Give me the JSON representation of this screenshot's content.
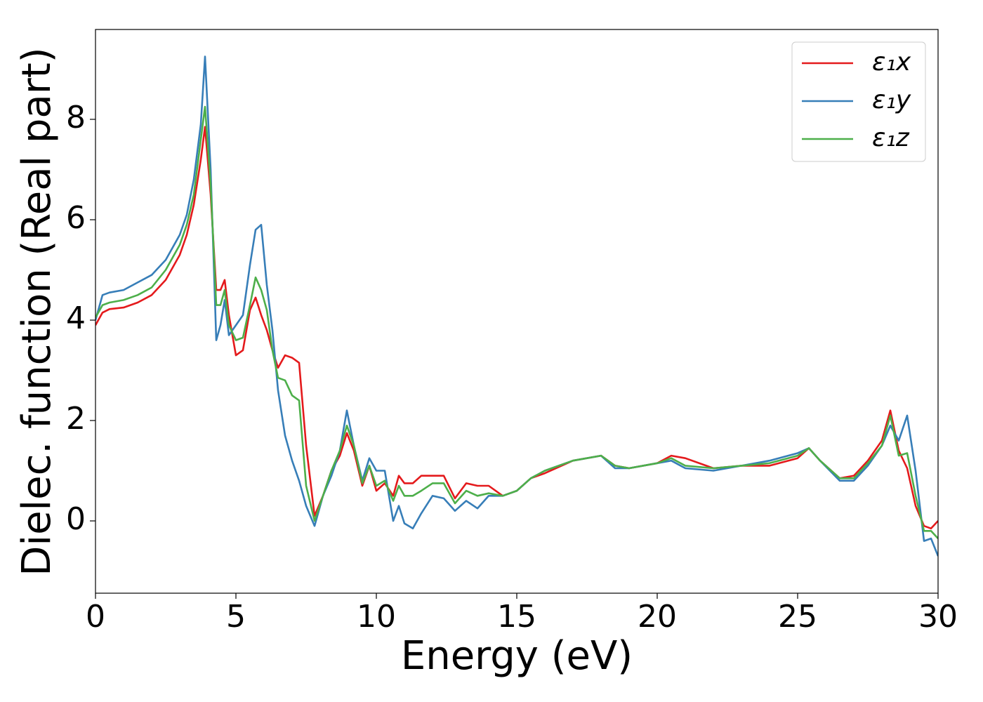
{
  "chart_data": {
    "type": "line",
    "xlabel": "Energy (eV)",
    "ylabel": "Dielec. function (Real part)",
    "xlim": [
      0,
      30
    ],
    "ylim": [
      -1.44,
      9.79
    ],
    "xticks": [
      0,
      5,
      10,
      15,
      20,
      25,
      30
    ],
    "yticks": [
      0,
      2,
      4,
      6,
      8
    ],
    "grid": false,
    "legend": "upper right",
    "x": [
      0,
      0.25,
      0.5,
      1,
      1.5,
      2,
      2.5,
      3,
      3.25,
      3.5,
      3.75,
      3.9,
      4.1,
      4.3,
      4.45,
      4.6,
      4.75,
      5,
      5.25,
      5.5,
      5.7,
      5.9,
      6.1,
      6.3,
      6.5,
      6.75,
      7,
      7.25,
      7.5,
      7.8,
      8.1,
      8.4,
      8.7,
      8.95,
      9.2,
      9.5,
      9.75,
      10,
      10.3,
      10.6,
      10.8,
      11,
      11.3,
      11.6,
      12,
      12.4,
      12.8,
      13.2,
      13.6,
      14,
      14.5,
      15,
      15.5,
      16,
      17,
      18,
      18.5,
      19,
      20,
      20.5,
      21,
      22,
      23,
      24,
      25,
      25.4,
      25.8,
      26.5,
      27,
      27.5,
      28,
      28.3,
      28.6,
      28.9,
      29.2,
      29.5,
      29.75,
      30
    ],
    "series": [
      {
        "name": "ε₁x",
        "color": "#e41a1c",
        "values": [
          3.9,
          4.15,
          4.22,
          4.25,
          4.35,
          4.5,
          4.8,
          5.3,
          5.7,
          6.3,
          7.2,
          7.85,
          6.5,
          4.6,
          4.6,
          4.8,
          4.1,
          3.3,
          3.4,
          4.2,
          4.45,
          4.1,
          3.8,
          3.4,
          3.05,
          3.3,
          3.25,
          3.15,
          1.5,
          0.1,
          0.5,
          1.0,
          1.3,
          1.75,
          1.4,
          0.7,
          1.1,
          0.6,
          0.75,
          0.5,
          0.9,
          0.75,
          0.75,
          0.9,
          0.9,
          0.9,
          0.45,
          0.75,
          0.7,
          0.7,
          0.5,
          0.6,
          0.85,
          0.95,
          1.2,
          1.3,
          1.1,
          1.05,
          1.15,
          1.3,
          1.25,
          1.05,
          1.1,
          1.1,
          1.25,
          1.45,
          1.2,
          0.85,
          0.9,
          1.2,
          1.6,
          2.2,
          1.4,
          1.05,
          0.3,
          -0.1,
          -0.15,
          0
        ]
      },
      {
        "name": "ε₁y",
        "color": "#377eb8",
        "values": [
          4.0,
          4.5,
          4.55,
          4.6,
          4.75,
          4.9,
          5.2,
          5.7,
          6.1,
          6.8,
          7.9,
          9.25,
          7.0,
          3.6,
          3.9,
          4.4,
          3.7,
          3.9,
          4.1,
          5.1,
          5.8,
          5.9,
          4.7,
          3.8,
          2.6,
          1.7,
          1.2,
          0.8,
          0.3,
          -0.1,
          0.5,
          0.9,
          1.4,
          2.2,
          1.5,
          0.8,
          1.25,
          1.0,
          1.0,
          0.0,
          0.3,
          -0.05,
          -0.15,
          0.15,
          0.5,
          0.45,
          0.2,
          0.4,
          0.25,
          0.5,
          0.5,
          0.6,
          0.85,
          1.0,
          1.2,
          1.3,
          1.05,
          1.05,
          1.15,
          1.2,
          1.05,
          1.0,
          1.1,
          1.2,
          1.35,
          1.45,
          1.2,
          0.8,
          0.8,
          1.1,
          1.5,
          1.9,
          1.6,
          2.1,
          1.0,
          -0.4,
          -0.35,
          -0.7
        ]
      },
      {
        "name": "ε₁z",
        "color": "#4daf4a",
        "values": [
          4.05,
          4.3,
          4.35,
          4.4,
          4.5,
          4.65,
          5.0,
          5.5,
          5.9,
          6.5,
          7.6,
          8.25,
          6.7,
          4.3,
          4.3,
          4.6,
          3.9,
          3.6,
          3.65,
          4.3,
          4.85,
          4.6,
          4.2,
          3.4,
          2.85,
          2.8,
          2.5,
          2.4,
          0.7,
          0.0,
          0.5,
          1.0,
          1.4,
          1.9,
          1.5,
          0.75,
          1.1,
          0.7,
          0.8,
          0.4,
          0.7,
          0.5,
          0.5,
          0.6,
          0.75,
          0.75,
          0.35,
          0.6,
          0.5,
          0.55,
          0.5,
          0.6,
          0.85,
          1.0,
          1.2,
          1.3,
          1.1,
          1.05,
          1.15,
          1.25,
          1.1,
          1.05,
          1.1,
          1.15,
          1.3,
          1.45,
          1.2,
          0.85,
          0.85,
          1.15,
          1.5,
          2.1,
          1.3,
          1.35,
          0.5,
          -0.2,
          -0.2,
          -0.35
        ]
      }
    ]
  }
}
